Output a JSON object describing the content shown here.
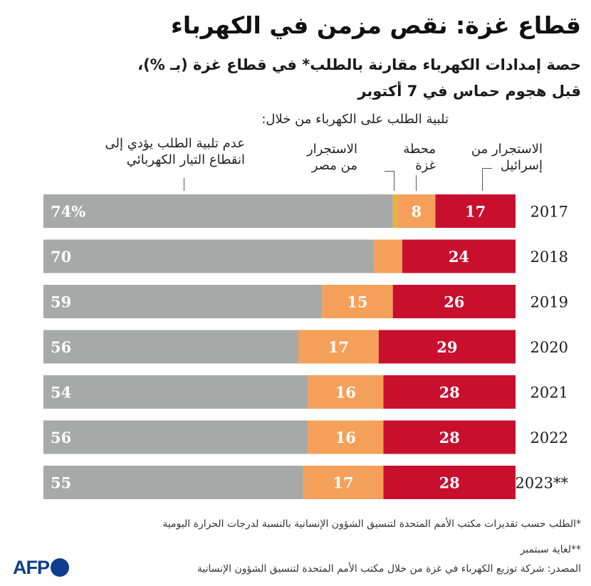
{
  "title": "قطاع غزة: نقص مزمن في الكهرباء",
  "subtitle_line1": "حصة إمدادات الكهرباء مقارنة بالطلب* في قطاع غزة (بـ %)،",
  "subtitle_line2": "قبل هجوم حماس في 7 أكتوبر",
  "legend": {
    "header": "تلبية الطلب على الكهرباء من خلال:",
    "israel_l1": "الاستجرار من",
    "israel_l2": "إسرائيل",
    "gaza_l1": "محطة",
    "gaza_l2": "غزة",
    "egypt_l1": "الاستجرار",
    "egypt_l2": "من مصر",
    "unmet_l1": "عدم تلبية الطلب يؤدي إلى",
    "unmet_l2": "انقطاع التيار الكهربائي"
  },
  "colors": {
    "israel": "#c8102e",
    "gaza": "#f5a05a",
    "egypt": "#e6b43c",
    "unmet": "#a6a9a8",
    "label_light": "#ffffff"
  },
  "chart_data": {
    "type": "bar",
    "orientation": "horizontal-stacked",
    "categories": [
      "2017",
      "2018",
      "2019",
      "2020",
      "2021",
      "2022",
      "2023**"
    ],
    "series": [
      {
        "name": "الاستجرار من إسرائيل",
        "key": "israel",
        "values": [
          17,
          24,
          26,
          29,
          28,
          28,
          28
        ]
      },
      {
        "name": "محطة غزة",
        "key": "gaza",
        "values": [
          8,
          6,
          15,
          17,
          16,
          16,
          17
        ]
      },
      {
        "name": "الاستجرار من مصر",
        "key": "egypt",
        "values": [
          1,
          0,
          0,
          0,
          0,
          0,
          0
        ]
      },
      {
        "name": "عدم تلبية الطلب",
        "key": "unmet",
        "values": [
          74,
          70,
          59,
          56,
          54,
          56,
          55
        ]
      }
    ],
    "data_labels": {
      "israel": [
        "17",
        "24",
        "26",
        "29",
        "28",
        "28",
        "28"
      ],
      "gaza": [
        "8",
        "",
        "15",
        "17",
        "16",
        "16",
        "17"
      ],
      "unmet": [
        "74%",
        "70",
        "59",
        "56",
        "54",
        "56",
        "55"
      ]
    },
    "xlim": [
      0,
      100
    ]
  },
  "footnotes": {
    "f1_l1": "*الطلب حسب تقديرات مكتب الأمم المتحدة لتنسيق الشؤون الإنسانية بالنسبة لدرجات الحرارة اليومية",
    "f2": "**لغاية سبتمبر",
    "source": "المصدر: شركة توزيع الكهرباء في غزة من خلال مكتب الأمم المتحدة لتنسيق الشؤون الإنسانية"
  },
  "logo_text": "AFP"
}
